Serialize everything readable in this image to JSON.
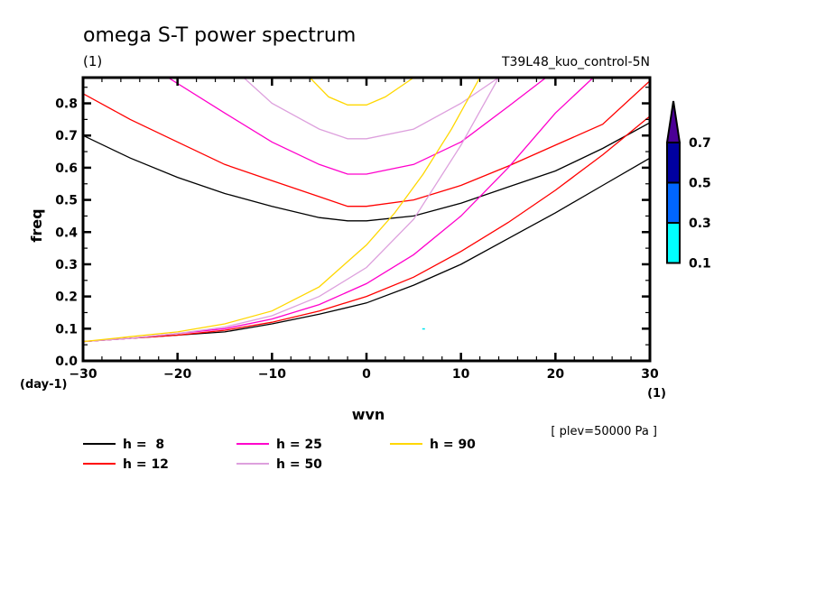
{
  "chart_data": {
    "type": "line",
    "title": "omega S-T power spectrum",
    "subtitle_left": "(1)",
    "subtitle_right": "T39L48_kuo_control-5N",
    "xlabel": "wvn",
    "xunit": "(1)",
    "ylabel": "freq",
    "yunit": "(day-1)",
    "xlim": [
      -30,
      30
    ],
    "ylim": [
      0,
      0.88
    ],
    "xticks": [
      -30,
      -20,
      -10,
      0,
      10,
      20,
      30
    ],
    "xtick_labels": [
      "-30",
      "-20",
      "-10",
      "0",
      "10",
      "20",
      "30"
    ],
    "yticks": [
      0.0,
      0.1,
      0.2,
      0.3,
      0.4,
      0.5,
      0.6,
      0.7,
      0.8
    ],
    "ytick_labels": [
      "0.0",
      "0.1",
      "0.2",
      "0.3",
      "0.4",
      "0.5",
      "0.6",
      "0.7",
      "0.8"
    ],
    "annotation": "[ plev=50000 Pa ]",
    "legend_position": "bottom",
    "series": [
      {
        "name": "h =  8",
        "color": "#000000",
        "curves": [
          {
            "x": [
              -30,
              -25,
              -20,
              -15,
              -10,
              -5,
              -2,
              0,
              5,
              10,
              15,
              20,
              25,
              30
            ],
            "y": [
              0.7,
              0.63,
              0.57,
              0.52,
              0.48,
              0.445,
              0.435,
              0.435,
              0.45,
              0.49,
              0.54,
              0.59,
              0.66,
              0.74
            ]
          },
          {
            "x": [
              -30,
              -25,
              -20,
              -15,
              -10,
              -5,
              0,
              5,
              10,
              15,
              20,
              25,
              30
            ],
            "y": [
              0.06,
              0.07,
              0.08,
              0.09,
              0.115,
              0.145,
              0.18,
              0.235,
              0.3,
              0.38,
              0.46,
              0.545,
              0.63
            ]
          }
        ]
      },
      {
        "name": "h = 12",
        "color": "#ff0000",
        "curves": [
          {
            "x": [
              -30,
              -25,
              -20,
              -15,
              -10,
              -5,
              -2,
              0,
              5,
              10,
              15,
              20,
              25,
              30
            ],
            "y": [
              0.83,
              0.75,
              0.68,
              0.61,
              0.56,
              0.51,
              0.48,
              0.48,
              0.5,
              0.545,
              0.605,
              0.67,
              0.735,
              0.87
            ]
          },
          {
            "x": [
              -30,
              -25,
              -20,
              -15,
              -10,
              -5,
              0,
              5,
              10,
              15,
              20,
              25,
              30
            ],
            "y": [
              0.06,
              0.07,
              0.08,
              0.095,
              0.12,
              0.155,
              0.2,
              0.26,
              0.34,
              0.43,
              0.53,
              0.64,
              0.76
            ]
          }
        ]
      },
      {
        "name": "h = 25",
        "color": "#ff00cc",
        "curves": [
          {
            "x": [
              -21,
              -15,
              -10,
              -5,
              -2,
              0,
              5,
              10,
              15,
              19
            ],
            "y": [
              0.88,
              0.77,
              0.68,
              0.61,
              0.58,
              0.58,
              0.61,
              0.68,
              0.79,
              0.88
            ]
          },
          {
            "x": [
              -30,
              -25,
              -20,
              -15,
              -10,
              -5,
              0,
              5,
              10,
              15,
              20,
              24
            ],
            "y": [
              0.06,
              0.07,
              0.085,
              0.1,
              0.13,
              0.175,
              0.24,
              0.33,
              0.45,
              0.6,
              0.77,
              0.88
            ]
          }
        ]
      },
      {
        "name": "h = 50",
        "color": "#dda0dd",
        "curves": [
          {
            "x": [
              -13,
              -10,
              -5,
              -2,
              0,
              5,
              10,
              14
            ],
            "y": [
              0.88,
              0.8,
              0.72,
              0.69,
              0.69,
              0.72,
              0.8,
              0.88
            ]
          },
          {
            "x": [
              -30,
              -25,
              -20,
              -15,
              -10,
              -5,
              0,
              5,
              10,
              14
            ],
            "y": [
              0.06,
              0.07,
              0.085,
              0.105,
              0.14,
              0.2,
              0.29,
              0.44,
              0.67,
              0.88
            ]
          }
        ]
      },
      {
        "name": "h = 90",
        "color": "#ffd700",
        "curves": [
          {
            "x": [
              -6,
              -4,
              -2,
              0,
              2,
              4,
              5
            ],
            "y": [
              0.88,
              0.82,
              0.795,
              0.795,
              0.82,
              0.86,
              0.88
            ]
          },
          {
            "x": [
              -30,
              -25,
              -20,
              -15,
              -10,
              -5,
              0,
              3,
              6,
              9,
              12
            ],
            "y": [
              0.06,
              0.075,
              0.09,
              0.115,
              0.155,
              0.23,
              0.36,
              0.46,
              0.58,
              0.72,
              0.88
            ]
          }
        ]
      }
    ],
    "colorbar": {
      "levels": [
        "0.1",
        "0.3",
        "0.5",
        "0.7"
      ],
      "colors": [
        "#00ffff",
        "#0066ff",
        "#0000a0",
        "#4b0096"
      ],
      "extend": "max"
    },
    "stray_marks": [
      {
        "x": 6,
        "y": 0.1,
        "color": "#00e5ee"
      }
    ]
  }
}
